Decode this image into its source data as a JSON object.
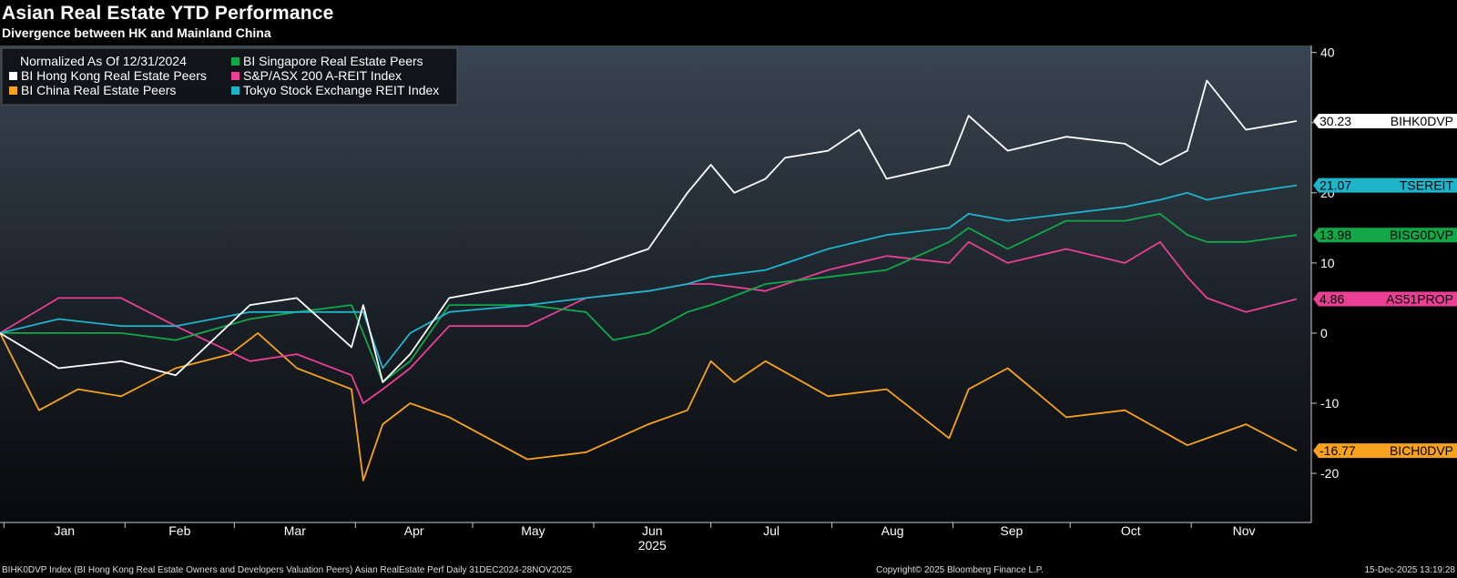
{
  "header": {
    "title": "Asian Real Estate YTD Performance",
    "subtitle": "Divergence between HK and Mainland China"
  },
  "legend": {
    "heading": "Normalized As Of 12/31/2024",
    "placement": "top-left"
  },
  "footer": {
    "source": "BIHK0DVP Index (BI Hong Kong Real Estate Owners and Developers Valuation Peers) Asian RealEstate Perf Daily 31DEC2024-28NOV2025",
    "copyright": "Copyright© 2025 Bloomberg Finance L.P.",
    "timestamp": "15-Dec-2025 13:19:28"
  },
  "chart_data": {
    "type": "line",
    "title": "Asian Real Estate YTD Performance",
    "subtitle": "Divergence between HK and Mainland China",
    "x_months": [
      "Jan",
      "Feb",
      "Mar",
      "Apr",
      "May",
      "Jun",
      "Jul",
      "Aug",
      "Sep",
      "Oct",
      "Nov"
    ],
    "x_year_label": "2025",
    "x_start": "2024-12-31",
    "x_end": "2025-11-28",
    "ylim": [
      -27,
      41
    ],
    "yticks": [
      40,
      30,
      20,
      10,
      0,
      -10,
      -20
    ],
    "y_axis_side": "right",
    "grid": false,
    "series": [
      {
        "name": "BI Hong Kong Real Estate Peers",
        "ticker": "BIHK0DVP",
        "color": "#ffffff",
        "last": "30.23",
        "dates": [
          "2024-12-31",
          "2025-01-15",
          "2025-01-31",
          "2025-02-14",
          "2025-03-05",
          "2025-03-17",
          "2025-03-31",
          "2025-04-03",
          "2025-04-08",
          "2025-04-15",
          "2025-04-25",
          "2025-05-15",
          "2025-05-30",
          "2025-06-15",
          "2025-06-25",
          "2025-07-01",
          "2025-07-07",
          "2025-07-15",
          "2025-07-20",
          "2025-07-31",
          "2025-08-08",
          "2025-08-15",
          "2025-08-31",
          "2025-09-05",
          "2025-09-15",
          "2025-09-30",
          "2025-10-15",
          "2025-10-24",
          "2025-10-31",
          "2025-11-05",
          "2025-11-15",
          "2025-11-28"
        ],
        "values": [
          0,
          -5,
          -4,
          -6,
          4,
          5,
          -2,
          4,
          -7,
          -3,
          5,
          7,
          9,
          12,
          20,
          24,
          20,
          22,
          25,
          26,
          29,
          22,
          24,
          31,
          26,
          28,
          27,
          24,
          26,
          36,
          29,
          30.23
        ]
      },
      {
        "name": "BI Singapore Real Estate Peers",
        "ticker": "BISG0DVP",
        "color": "#12a84a",
        "last": "13.98",
        "dates": [
          "2024-12-31",
          "2025-01-15",
          "2025-01-31",
          "2025-02-14",
          "2025-03-05",
          "2025-03-17",
          "2025-03-31",
          "2025-04-03",
          "2025-04-08",
          "2025-04-15",
          "2025-04-25",
          "2025-05-15",
          "2025-05-30",
          "2025-06-06",
          "2025-06-15",
          "2025-06-25",
          "2025-07-01",
          "2025-07-15",
          "2025-07-31",
          "2025-08-15",
          "2025-08-31",
          "2025-09-05",
          "2025-09-15",
          "2025-09-30",
          "2025-10-15",
          "2025-10-24",
          "2025-10-31",
          "2025-11-05",
          "2025-11-15",
          "2025-11-28"
        ],
        "values": [
          0,
          0,
          0,
          -1,
          2,
          3,
          4,
          0,
          -7,
          -4,
          4,
          4,
          3,
          -1,
          0,
          3,
          4,
          7,
          8,
          9,
          13,
          15,
          12,
          16,
          16,
          17,
          14,
          13,
          13,
          13.98
        ]
      },
      {
        "name": "S&P/ASX 200 A-REIT Index",
        "ticker": "AS51PROP",
        "color": "#e93f95",
        "last": "4.86",
        "dates": [
          "2024-12-31",
          "2025-01-15",
          "2025-01-31",
          "2025-02-14",
          "2025-03-05",
          "2025-03-17",
          "2025-03-31",
          "2025-04-03",
          "2025-04-08",
          "2025-04-15",
          "2025-04-25",
          "2025-05-15",
          "2025-05-30",
          "2025-06-15",
          "2025-06-25",
          "2025-07-01",
          "2025-07-15",
          "2025-07-31",
          "2025-08-15",
          "2025-08-31",
          "2025-09-05",
          "2025-09-15",
          "2025-09-30",
          "2025-10-15",
          "2025-10-24",
          "2025-10-31",
          "2025-11-05",
          "2025-11-15",
          "2025-11-28"
        ],
        "values": [
          0,
          5,
          5,
          1,
          -4,
          -3,
          -6,
          -10,
          -8,
          -5,
          1,
          1,
          5,
          6,
          7,
          7,
          6,
          9,
          11,
          10,
          13,
          10,
          12,
          10,
          13,
          8,
          5,
          3,
          4.86
        ]
      },
      {
        "name": "BI China Real Estate Peers",
        "ticker": "BICH0DVP",
        "color": "#f7a21f",
        "last": "-16.77",
        "dates": [
          "2024-12-31",
          "2025-01-10",
          "2025-01-20",
          "2025-01-31",
          "2025-02-14",
          "2025-02-28",
          "2025-03-07",
          "2025-03-17",
          "2025-03-31",
          "2025-04-03",
          "2025-04-08",
          "2025-04-15",
          "2025-04-25",
          "2025-05-15",
          "2025-05-30",
          "2025-06-15",
          "2025-06-25",
          "2025-07-01",
          "2025-07-07",
          "2025-07-15",
          "2025-07-31",
          "2025-08-15",
          "2025-08-31",
          "2025-09-05",
          "2025-09-15",
          "2025-09-30",
          "2025-10-15",
          "2025-10-31",
          "2025-11-05",
          "2025-11-15",
          "2025-11-28"
        ],
        "values": [
          0,
          -11,
          -8,
          -9,
          -5,
          -3,
          0,
          -5,
          -8,
          -21,
          -13,
          -10,
          -12,
          -18,
          -17,
          -13,
          -11,
          -4,
          -7,
          -4,
          -9,
          -8,
          -15,
          -8,
          -5,
          -12,
          -11,
          -16,
          -15,
          -13,
          -16.77
        ]
      },
      {
        "name": "Tokyo Stock Exchange REIT Index",
        "ticker": "TSEREIT",
        "color": "#1eb4c9",
        "last": "21.07",
        "dates": [
          "2024-12-31",
          "2025-01-15",
          "2025-01-31",
          "2025-02-14",
          "2025-03-05",
          "2025-03-17",
          "2025-03-31",
          "2025-04-03",
          "2025-04-08",
          "2025-04-15",
          "2025-04-25",
          "2025-05-15",
          "2025-05-30",
          "2025-06-15",
          "2025-06-25",
          "2025-07-01",
          "2025-07-15",
          "2025-07-31",
          "2025-08-15",
          "2025-08-31",
          "2025-09-05",
          "2025-09-15",
          "2025-09-30",
          "2025-10-15",
          "2025-10-24",
          "2025-10-31",
          "2025-11-05",
          "2025-11-15",
          "2025-11-28"
        ],
        "values": [
          0,
          2,
          1,
          1,
          3,
          3,
          3,
          3,
          -5,
          0,
          3,
          4,
          5,
          6,
          7,
          8,
          9,
          12,
          14,
          15,
          17,
          16,
          17,
          18,
          19,
          20,
          19,
          20,
          21.07
        ]
      }
    ]
  }
}
